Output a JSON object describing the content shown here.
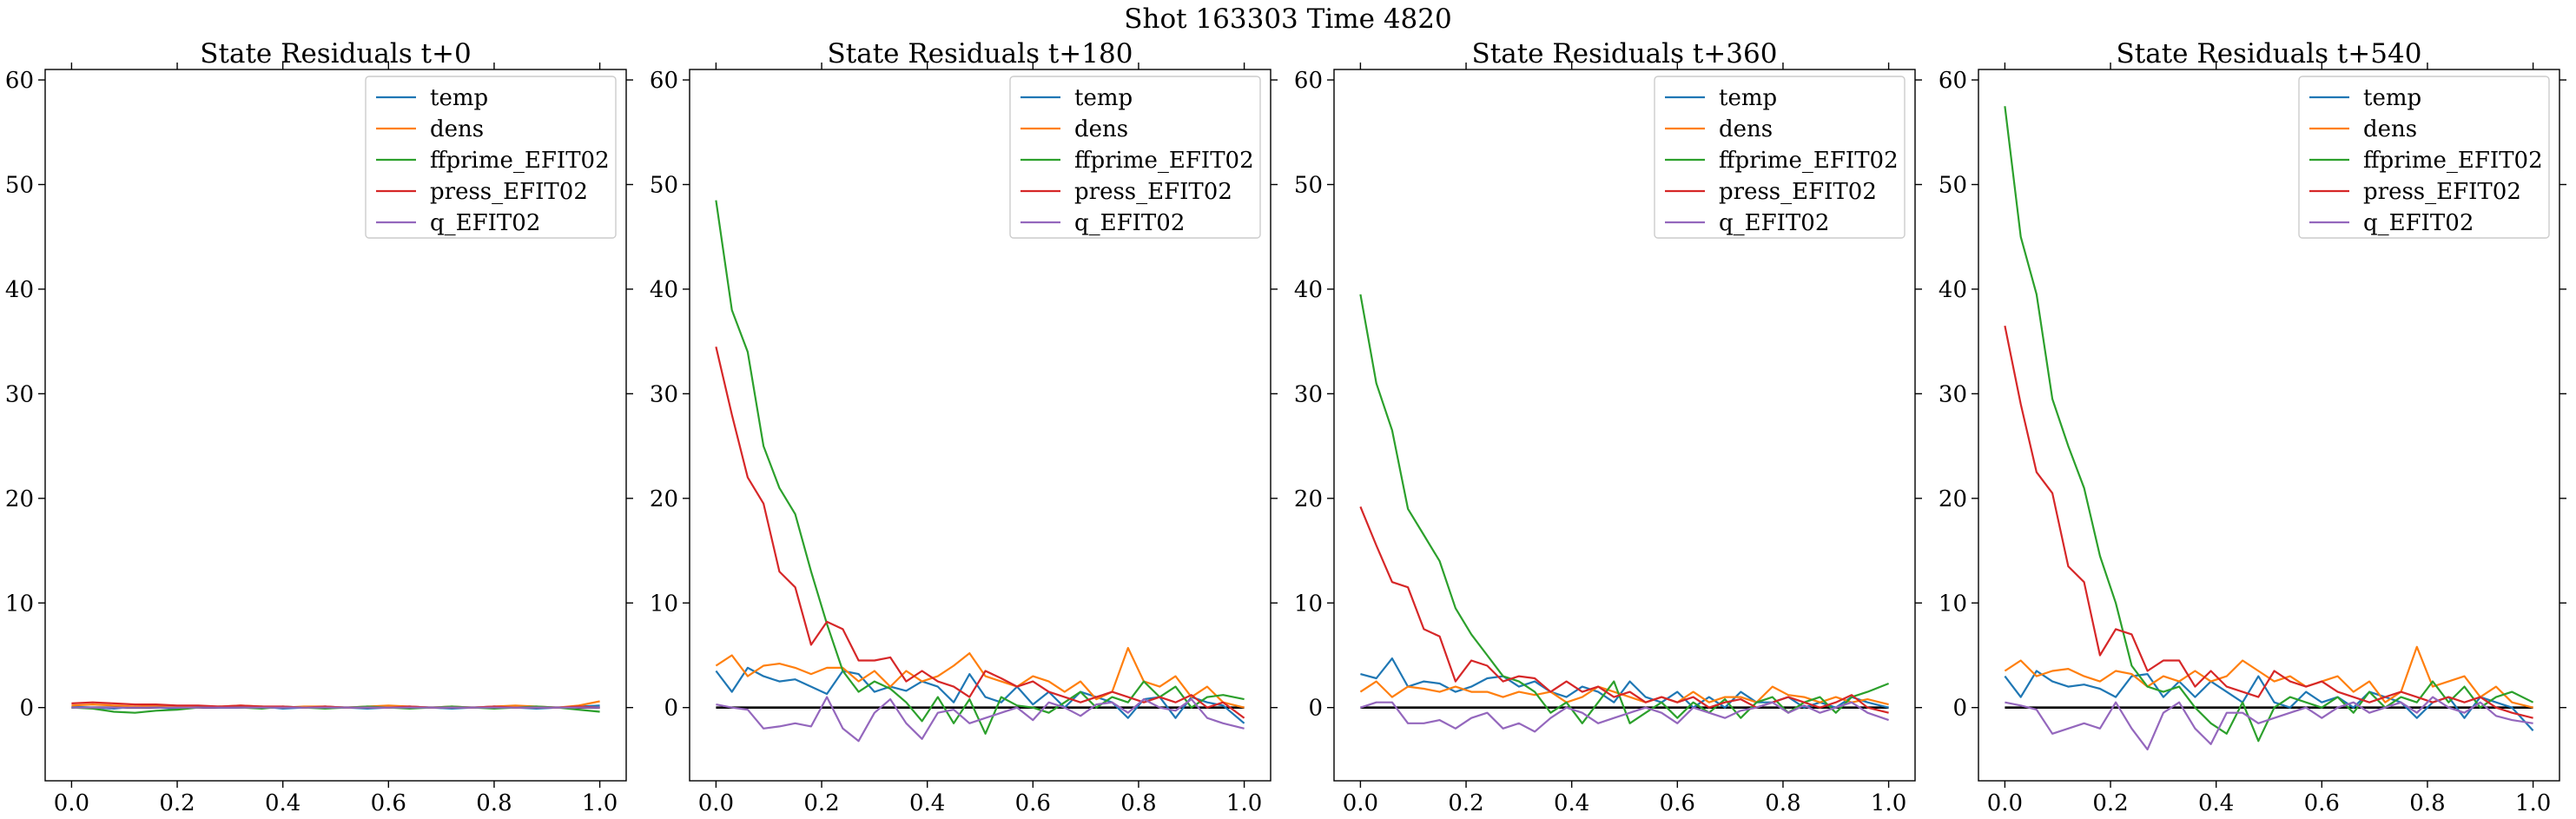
{
  "figure": {
    "suptitle": "Shot 163303   Time 4820"
  },
  "chart_data": [
    {
      "type": "line",
      "title": "State Residuals t+0",
      "xlabel": "",
      "ylabel": "",
      "xlim": [
        -0.05,
        1.05
      ],
      "ylim": [
        -7,
        61
      ],
      "xticks": [
        0.0,
        0.2,
        0.4,
        0.6,
        0.8,
        1.0
      ],
      "xtick_labels": [
        "0.0",
        "0.2",
        "0.4",
        "0.6",
        "0.8",
        "1.0"
      ],
      "yticks": [
        0,
        10,
        20,
        30,
        40,
        50,
        60
      ],
      "ytick_labels": [
        "0",
        "10",
        "20",
        "30",
        "40",
        "50",
        "60"
      ],
      "zero_line": true,
      "legend_loc": "upper right",
      "x": [
        0.0,
        0.04,
        0.08,
        0.12,
        0.16,
        0.2,
        0.24,
        0.28,
        0.32,
        0.36,
        0.4,
        0.44,
        0.48,
        0.52,
        0.56,
        0.6,
        0.64,
        0.68,
        0.72,
        0.76,
        0.8,
        0.84,
        0.88,
        0.92,
        0.96,
        1.0
      ],
      "series": [
        {
          "name": "temp",
          "color": "#1f77b4",
          "values": [
            0.1,
            0.0,
            -0.1,
            0.1,
            0.0,
            -0.1,
            0.1,
            0.0,
            0.0,
            0.1,
            -0.1,
            0.0,
            0.1,
            0.0,
            -0.1,
            0.0,
            0.1,
            0.0,
            -0.1,
            0.0,
            0.1,
            0.0,
            -0.1,
            0.0,
            0.1,
            0.2
          ]
        },
        {
          "name": "dens",
          "color": "#ff7f0e",
          "values": [
            0.2,
            0.3,
            0.2,
            0.1,
            0.2,
            0.1,
            0.0,
            0.1,
            0.2,
            0.1,
            0.0,
            0.1,
            0.1,
            0.0,
            0.1,
            0.2,
            0.1,
            0.0,
            0.1,
            0.0,
            0.1,
            0.2,
            0.1,
            0.0,
            0.2,
            0.6
          ]
        },
        {
          "name": "ffprime_EFIT02",
          "color": "#2ca02c",
          "values": [
            0.0,
            -0.1,
            -0.4,
            -0.5,
            -0.3,
            -0.2,
            0.0,
            0.1,
            0.0,
            -0.1,
            0.1,
            0.0,
            -0.1,
            0.0,
            0.1,
            0.0,
            -0.1,
            0.0,
            0.1,
            0.0,
            -0.1,
            0.0,
            0.1,
            0.0,
            -0.2,
            -0.4
          ]
        },
        {
          "name": "press_EFIT02",
          "color": "#d62728",
          "values": [
            0.4,
            0.5,
            0.4,
            0.3,
            0.3,
            0.2,
            0.2,
            0.1,
            0.2,
            0.1,
            0.1,
            0.0,
            0.1,
            0.0,
            0.0,
            0.0,
            0.1,
            0.0,
            0.0,
            0.0,
            0.1,
            0.0,
            0.0,
            0.0,
            0.1,
            0.0
          ]
        },
        {
          "name": "q_EFIT02",
          "color": "#9467bd",
          "values": [
            0.0,
            0.0,
            0.0,
            0.0,
            0.0,
            0.0,
            0.0,
            0.0,
            0.0,
            0.0,
            0.0,
            0.0,
            0.0,
            0.0,
            0.0,
            0.0,
            0.0,
            0.0,
            0.0,
            0.0,
            0.0,
            0.0,
            0.0,
            0.0,
            0.0,
            0.0
          ]
        }
      ]
    },
    {
      "type": "line",
      "title": "State Residuals t+180",
      "xlabel": "",
      "ylabel": "",
      "xlim": [
        -0.05,
        1.05
      ],
      "ylim": [
        -7,
        61
      ],
      "xticks": [
        0.0,
        0.2,
        0.4,
        0.6,
        0.8,
        1.0
      ],
      "xtick_labels": [
        "0.0",
        "0.2",
        "0.4",
        "0.6",
        "0.8",
        "1.0"
      ],
      "yticks": [
        0,
        10,
        20,
        30,
        40,
        50,
        60
      ],
      "ytick_labels": [
        "0",
        "10",
        "20",
        "30",
        "40",
        "50",
        "60"
      ],
      "zero_line": true,
      "legend_loc": "upper right",
      "x": [
        0.0,
        0.03,
        0.06,
        0.09,
        0.12,
        0.15,
        0.18,
        0.21,
        0.24,
        0.27,
        0.3,
        0.33,
        0.36,
        0.39,
        0.42,
        0.45,
        0.48,
        0.51,
        0.54,
        0.57,
        0.6,
        0.63,
        0.66,
        0.69,
        0.72,
        0.75,
        0.78,
        0.81,
        0.84,
        0.87,
        0.9,
        0.93,
        0.96,
        1.0
      ],
      "series": [
        {
          "name": "temp",
          "color": "#1f77b4",
          "values": [
            3.5,
            1.5,
            3.8,
            3.0,
            2.5,
            2.7,
            2.0,
            1.3,
            3.5,
            3.2,
            1.5,
            2.0,
            1.6,
            2.5,
            2.0,
            0.5,
            3.2,
            1.0,
            0.5,
            2.0,
            0.3,
            1.5,
            0.0,
            1.5,
            1.0,
            0.5,
            -1.0,
            0.8,
            1.0,
            -1.0,
            1.0,
            0.5,
            0.2,
            -1.5
          ]
        },
        {
          "name": "dens",
          "color": "#ff7f0e",
          "values": [
            4.0,
            5.0,
            3.0,
            4.0,
            4.2,
            3.8,
            3.2,
            3.8,
            3.8,
            2.5,
            3.5,
            2.0,
            3.5,
            2.5,
            3.0,
            4.0,
            5.2,
            3.0,
            2.5,
            2.0,
            3.0,
            2.5,
            1.5,
            2.5,
            0.8,
            1.5,
            5.7,
            2.5,
            2.0,
            3.0,
            1.0,
            2.0,
            0.5,
            0.0
          ]
        },
        {
          "name": "ffprime_EFIT02",
          "color": "#2ca02c",
          "values": [
            48.5,
            38.0,
            34.0,
            25.0,
            21.0,
            18.5,
            13.0,
            8.0,
            3.5,
            1.5,
            2.5,
            1.8,
            0.5,
            -1.3,
            1.0,
            -1.5,
            0.8,
            -2.5,
            1.0,
            0.2,
            0.0,
            -0.5,
            0.5,
            1.5,
            0.0,
            1.0,
            0.5,
            2.5,
            1.0,
            2.0,
            0.0,
            1.0,
            1.2,
            0.8
          ]
        },
        {
          "name": "press_EFIT02",
          "color": "#d62728",
          "values": [
            34.5,
            28.0,
            22.0,
            19.5,
            13.0,
            11.5,
            6.0,
            8.2,
            7.5,
            4.5,
            4.5,
            4.8,
            2.5,
            3.5,
            2.5,
            2.0,
            1.0,
            3.5,
            2.8,
            2.0,
            2.5,
            1.5,
            1.0,
            0.5,
            1.0,
            1.5,
            1.0,
            0.5,
            1.0,
            0.5,
            1.2,
            0.0,
            0.5,
            -1.0
          ]
        },
        {
          "name": "q_EFIT02",
          "color": "#9467bd",
          "values": [
            0.3,
            0.0,
            -0.2,
            -2.0,
            -1.8,
            -1.5,
            -1.8,
            1.0,
            -2.0,
            -3.2,
            -0.5,
            0.8,
            -1.5,
            -3.0,
            -0.5,
            -0.2,
            -1.5,
            -1.0,
            -0.5,
            0.0,
            -1.2,
            0.5,
            0.0,
            -0.8,
            0.3,
            0.5,
            -0.5,
            0.8,
            0.0,
            -0.3,
            0.8,
            -1.0,
            -1.5,
            -2.0
          ]
        }
      ]
    },
    {
      "type": "line",
      "title": "State Residuals t+360",
      "xlabel": "",
      "ylabel": "",
      "xlim": [
        -0.05,
        1.05
      ],
      "ylim": [
        -7,
        61
      ],
      "xticks": [
        0.0,
        0.2,
        0.4,
        0.6,
        0.8,
        1.0
      ],
      "xtick_labels": [
        "0.0",
        "0.2",
        "0.4",
        "0.6",
        "0.8",
        "1.0"
      ],
      "yticks": [
        0,
        10,
        20,
        30,
        40,
        50,
        60
      ],
      "ytick_labels": [
        "0",
        "10",
        "20",
        "30",
        "40",
        "50",
        "60"
      ],
      "zero_line": true,
      "legend_loc": "upper right",
      "x": [
        0.0,
        0.03,
        0.06,
        0.09,
        0.12,
        0.15,
        0.18,
        0.21,
        0.24,
        0.27,
        0.3,
        0.33,
        0.36,
        0.39,
        0.42,
        0.45,
        0.48,
        0.51,
        0.54,
        0.57,
        0.6,
        0.63,
        0.66,
        0.69,
        0.72,
        0.75,
        0.78,
        0.81,
        0.84,
        0.87,
        0.9,
        0.93,
        0.96,
        1.0
      ],
      "series": [
        {
          "name": "temp",
          "color": "#1f77b4",
          "values": [
            3.2,
            2.8,
            4.7,
            2.0,
            2.5,
            2.3,
            1.5,
            2.0,
            2.8,
            3.0,
            2.0,
            2.5,
            1.5,
            1.0,
            2.0,
            1.5,
            0.5,
            2.5,
            1.0,
            0.5,
            1.5,
            0.0,
            1.0,
            0.0,
            1.5,
            0.5,
            0.5,
            1.0,
            0.0,
            0.5,
            0.0,
            1.0,
            0.5,
            0.0
          ]
        },
        {
          "name": "dens",
          "color": "#ff7f0e",
          "values": [
            1.5,
            2.5,
            1.0,
            2.0,
            1.8,
            1.5,
            2.0,
            1.5,
            1.5,
            1.0,
            1.5,
            1.2,
            1.5,
            0.5,
            1.0,
            2.0,
            1.5,
            1.0,
            0.5,
            1.0,
            0.5,
            1.5,
            0.5,
            1.0,
            1.0,
            0.5,
            2.0,
            1.2,
            1.0,
            0.5,
            1.0,
            0.5,
            0.8,
            0.3
          ]
        },
        {
          "name": "ffprime_EFIT02",
          "color": "#2ca02c",
          "values": [
            39.5,
            31.0,
            26.5,
            19.0,
            16.5,
            14.0,
            9.5,
            7.0,
            5.0,
            3.0,
            2.5,
            1.5,
            -0.5,
            0.5,
            -1.5,
            0.5,
            2.5,
            -1.5,
            -0.5,
            0.5,
            -1.0,
            0.5,
            -0.5,
            0.8,
            -1.0,
            0.5,
            1.0,
            -0.5,
            0.5,
            1.0,
            -0.5,
            1.0,
            1.5,
            2.3
          ]
        },
        {
          "name": "press_EFIT02",
          "color": "#d62728",
          "values": [
            19.2,
            15.5,
            12.0,
            11.5,
            7.5,
            6.8,
            2.5,
            4.5,
            4.0,
            2.5,
            3.0,
            2.8,
            1.5,
            2.5,
            1.5,
            2.0,
            1.0,
            1.5,
            0.5,
            1.0,
            0.5,
            1.0,
            0.0,
            0.5,
            0.8,
            0.0,
            0.5,
            1.0,
            0.5,
            0.0,
            0.5,
            1.2,
            0.0,
            -0.5
          ]
        },
        {
          "name": "q_EFIT02",
          "color": "#9467bd",
          "values": [
            0.0,
            0.5,
            0.5,
            -1.5,
            -1.5,
            -1.2,
            -2.0,
            -1.0,
            -0.5,
            -2.0,
            -1.5,
            -2.3,
            -1.0,
            0.0,
            -0.5,
            -1.5,
            -1.0,
            -0.5,
            0.0,
            -0.5,
            -1.5,
            0.0,
            -0.5,
            -1.0,
            -0.3,
            0.0,
            0.5,
            -0.5,
            0.2,
            -0.5,
            0.0,
            0.5,
            -0.5,
            -1.2
          ]
        }
      ]
    },
    {
      "type": "line",
      "title": "State Residuals t+540",
      "xlabel": "",
      "ylabel": "",
      "xlim": [
        -0.05,
        1.05
      ],
      "ylim": [
        -7,
        61
      ],
      "xticks": [
        0.0,
        0.2,
        0.4,
        0.6,
        0.8,
        1.0
      ],
      "xtick_labels": [
        "0.0",
        "0.2",
        "0.4",
        "0.6",
        "0.8",
        "1.0"
      ],
      "yticks": [
        0,
        10,
        20,
        30,
        40,
        50,
        60
      ],
      "ytick_labels": [
        "0",
        "10",
        "20",
        "30",
        "40",
        "50",
        "60"
      ],
      "zero_line": true,
      "legend_loc": "upper right",
      "x": [
        0.0,
        0.03,
        0.06,
        0.09,
        0.12,
        0.15,
        0.18,
        0.21,
        0.24,
        0.27,
        0.3,
        0.33,
        0.36,
        0.39,
        0.42,
        0.45,
        0.48,
        0.51,
        0.54,
        0.57,
        0.6,
        0.63,
        0.66,
        0.69,
        0.72,
        0.75,
        0.78,
        0.81,
        0.84,
        0.87,
        0.9,
        0.93,
        0.96,
        1.0
      ],
      "series": [
        {
          "name": "temp",
          "color": "#1f77b4",
          "values": [
            3.0,
            1.0,
            3.5,
            2.5,
            2.0,
            2.2,
            1.8,
            1.0,
            3.0,
            3.2,
            1.0,
            2.5,
            1.0,
            2.5,
            1.5,
            0.5,
            3.0,
            0.5,
            0.0,
            1.5,
            0.5,
            1.0,
            0.0,
            1.5,
            1.0,
            0.5,
            -1.0,
            0.5,
            1.0,
            -1.0,
            1.0,
            0.5,
            0.0,
            -2.2
          ]
        },
        {
          "name": "dens",
          "color": "#ff7f0e",
          "values": [
            3.5,
            4.5,
            3.0,
            3.5,
            3.7,
            3.0,
            2.5,
            3.5,
            3.2,
            2.0,
            3.0,
            2.5,
            3.5,
            2.5,
            3.0,
            4.5,
            3.5,
            2.5,
            3.0,
            2.0,
            2.5,
            3.0,
            1.5,
            2.5,
            0.5,
            1.5,
            5.8,
            2.0,
            2.5,
            3.0,
            1.0,
            2.0,
            0.5,
            0.0
          ]
        },
        {
          "name": "ffprime_EFIT02",
          "color": "#2ca02c",
          "values": [
            57.5,
            45.0,
            39.5,
            29.5,
            25.0,
            21.0,
            14.5,
            10.0,
            4.0,
            2.0,
            1.5,
            2.0,
            0.0,
            -1.5,
            -2.5,
            0.5,
            -3.2,
            0.0,
            1.0,
            0.5,
            0.0,
            1.0,
            -0.5,
            1.5,
            0.0,
            1.0,
            0.5,
            2.5,
            0.5,
            2.0,
            0.0,
            1.0,
            1.5,
            0.5
          ]
        },
        {
          "name": "press_EFIT02",
          "color": "#d62728",
          "values": [
            36.5,
            29.0,
            22.5,
            20.5,
            13.5,
            12.0,
            5.0,
            7.5,
            7.0,
            3.5,
            4.5,
            4.5,
            2.0,
            3.5,
            2.0,
            1.5,
            1.0,
            3.5,
            2.5,
            2.0,
            2.5,
            1.5,
            1.0,
            0.5,
            1.0,
            1.5,
            1.0,
            0.5,
            1.0,
            0.5,
            1.0,
            0.0,
            -0.5,
            -1.0
          ]
        },
        {
          "name": "q_EFIT02",
          "color": "#9467bd",
          "values": [
            0.5,
            0.2,
            -0.2,
            -2.5,
            -2.0,
            -1.5,
            -2.0,
            0.5,
            -2.0,
            -4.0,
            -0.5,
            0.5,
            -2.0,
            -3.5,
            -0.5,
            -0.5,
            -1.5,
            -1.0,
            -0.5,
            0.0,
            -1.0,
            0.0,
            0.5,
            -0.5,
            0.0,
            0.5,
            -0.5,
            1.0,
            0.0,
            -0.5,
            0.5,
            -0.8,
            -1.2,
            -1.5
          ]
        }
      ]
    }
  ]
}
